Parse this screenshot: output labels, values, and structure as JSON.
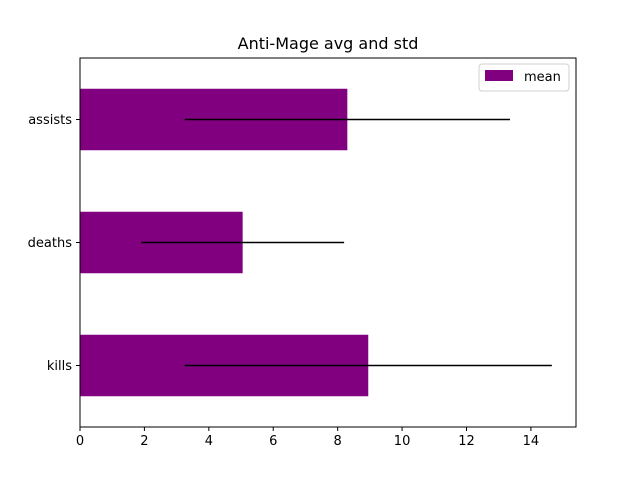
{
  "chart_data": {
    "type": "bar",
    "orientation": "horizontal",
    "title": "Anti-Mage avg and std",
    "xlabel": "",
    "ylabel": "",
    "categories": [
      "kills",
      "deaths",
      "assists"
    ],
    "series": [
      {
        "name": "mean",
        "values": [
          8.95,
          5.05,
          8.3
        ],
        "error": [
          5.7,
          3.15,
          5.05
        ],
        "color": "#800080"
      }
    ],
    "error_bar_color": "#000000",
    "xlim": [
      0,
      15.4
    ],
    "xticks": [
      "0",
      "2",
      "4",
      "6",
      "8",
      "10",
      "12",
      "14"
    ],
    "grid": false,
    "legend": "top-right"
  }
}
